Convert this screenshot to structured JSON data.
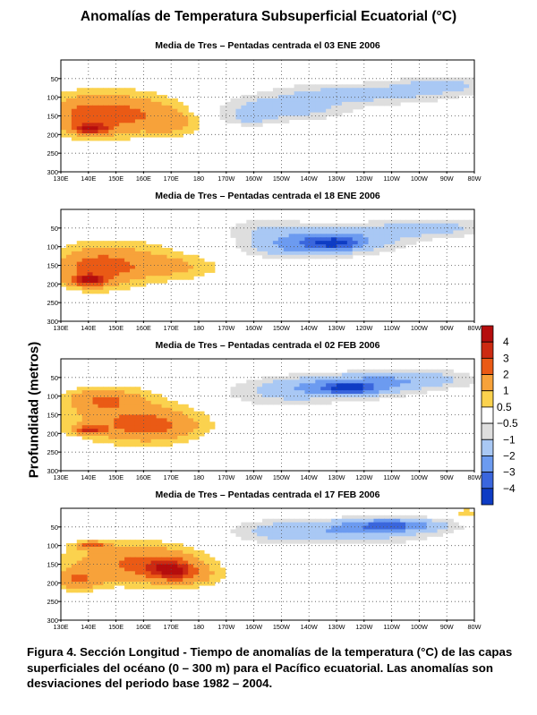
{
  "title": "Anomalías de Temperatura Subsuperficial Ecuatorial (°C)",
  "ylabel": "Profundidad (metros)",
  "caption": "Figura 4.  Sección Longitud  - Tiempo  de anomalías de la temperatura (°C) de las capas superficiales del océano (0 – 300 m) para el Pacífico ecuatorial.  Las anomalías son desviaciones del periodo base 1982 – 2004.",
  "colorbar": {
    "labels": [
      "4",
      "3",
      "2",
      "1",
      "0.5",
      "−0.5",
      "−1",
      "−2",
      "−3",
      "−4"
    ],
    "levels": [
      {
        "lo": 4,
        "hi": null,
        "color": "#b50d0d"
      },
      {
        "lo": 3,
        "hi": 4,
        "color": "#cc2a12"
      },
      {
        "lo": 2,
        "hi": 3,
        "color": "#ea5a15"
      },
      {
        "lo": 1,
        "hi": 2,
        "color": "#f7a23a"
      },
      {
        "lo": 0.5,
        "hi": 1,
        "color": "#fbd24e"
      },
      {
        "lo": -0.5,
        "hi": 0.5,
        "color": "#ffffff"
      },
      {
        "lo": -1,
        "hi": -0.5,
        "color": "#dedede"
      },
      {
        "lo": -2,
        "hi": -1,
        "color": "#a9c8f4"
      },
      {
        "lo": -3,
        "hi": -2,
        "color": "#6c9bf0"
      },
      {
        "lo": -4,
        "hi": -3,
        "color": "#3a66dd"
      },
      {
        "lo": null,
        "hi": -4,
        "color": "#0e3cc4"
      }
    ]
  },
  "chart_data": [
    {
      "type": "heatmap",
      "title": "Media de Tres – Pentadas  centrada el 03 ENE 2006",
      "xlabel": "",
      "ylabel": "Profundidad (metros)",
      "x_ticks": [
        "130E",
        "140E",
        "150E",
        "160E",
        "170E",
        "180",
        "170W",
        "160W",
        "150W",
        "140W",
        "130W",
        "120W",
        "110W",
        "100W",
        "90W",
        "80W"
      ],
      "x_lon": [
        130,
        140,
        150,
        160,
        170,
        180,
        190,
        200,
        210,
        220,
        230,
        240,
        250,
        260,
        270,
        280
      ],
      "y_ticks": [
        50,
        100,
        150,
        200,
        250,
        300
      ],
      "ylim": [
        300,
        0
      ],
      "grid": true,
      "features": [
        {
          "lon": 141,
          "depth": 185,
          "rx": 6,
          "ry": 12,
          "amp": 3.2
        },
        {
          "lon": 140,
          "depth": 150,
          "rx": 15,
          "ry": 50,
          "amp": 1.7
        },
        {
          "lon": 151,
          "depth": 140,
          "rx": 22,
          "ry": 62,
          "amp": 1.1
        },
        {
          "lon": 163,
          "depth": 150,
          "rx": 16,
          "ry": 40,
          "amp": 0.8
        },
        {
          "lon": 170,
          "depth": 175,
          "rx": 9,
          "ry": 30,
          "amp": 0.7
        },
        {
          "lon": 210,
          "depth": 130,
          "rx": 22,
          "ry": 30,
          "amp": -1.6
        },
        {
          "lon": 240,
          "depth": 90,
          "rx": 32,
          "ry": 28,
          "amp": -1.4
        },
        {
          "lon": 268,
          "depth": 65,
          "rx": 14,
          "ry": 22,
          "amp": -1.3
        },
        {
          "lon": 198,
          "depth": 160,
          "rx": 10,
          "ry": 18,
          "amp": -0.8
        }
      ]
    },
    {
      "type": "heatmap",
      "title": "Media de Tres – Pentadas  centrada el 18 ENE 2006",
      "xlabel": "",
      "ylabel": "Profundidad (metros)",
      "x_ticks": [
        "130E",
        "140E",
        "150E",
        "160E",
        "170E",
        "180",
        "170W",
        "160W",
        "150W",
        "140W",
        "130W",
        "120W",
        "110W",
        "100W",
        "90W",
        "80W"
      ],
      "x_lon": [
        130,
        140,
        150,
        160,
        170,
        180,
        190,
        200,
        210,
        220,
        230,
        240,
        250,
        260,
        270,
        280
      ],
      "y_ticks": [
        50,
        100,
        150,
        200,
        250,
        300
      ],
      "ylim": [
        300,
        0
      ],
      "grid": true,
      "features": [
        {
          "lon": 140,
          "depth": 190,
          "rx": 6,
          "ry": 14,
          "amp": 3.2
        },
        {
          "lon": 142,
          "depth": 160,
          "rx": 13,
          "ry": 50,
          "amp": 1.7
        },
        {
          "lon": 152,
          "depth": 140,
          "rx": 22,
          "ry": 60,
          "amp": 1.1
        },
        {
          "lon": 170,
          "depth": 155,
          "rx": 18,
          "ry": 30,
          "amp": 0.9
        },
        {
          "lon": 228,
          "depth": 85,
          "rx": 22,
          "ry": 30,
          "amp": -2.6
        },
        {
          "lon": 230,
          "depth": 90,
          "rx": 8,
          "ry": 15,
          "amp": -1.9
        },
        {
          "lon": 215,
          "depth": 105,
          "rx": 18,
          "ry": 28,
          "amp": -1.2
        },
        {
          "lon": 262,
          "depth": 50,
          "rx": 22,
          "ry": 25,
          "amp": -1.5
        },
        {
          "lon": 205,
          "depth": 50,
          "rx": 16,
          "ry": 30,
          "amp": -0.9
        }
      ]
    },
    {
      "type": "heatmap",
      "title": "Media de Tres – Pentadas  centrada el 02 FEB 2006",
      "xlabel": "",
      "ylabel": "Profundidad (metros)",
      "x_ticks": [
        "130E",
        "140E",
        "150E",
        "160E",
        "170E",
        "180",
        "170W",
        "160W",
        "150W",
        "140W",
        "130W",
        "120W",
        "110W",
        "100W",
        "90W",
        "80W"
      ],
      "x_lon": [
        130,
        140,
        150,
        160,
        170,
        180,
        190,
        200,
        210,
        220,
        230,
        240,
        250,
        260,
        270,
        280
      ],
      "y_ticks": [
        50,
        100,
        150,
        200,
        250,
        300
      ],
      "ylim": [
        300,
        0
      ],
      "grid": true,
      "features": [
        {
          "lon": 140,
          "depth": 190,
          "rx": 5,
          "ry": 10,
          "amp": 3.0
        },
        {
          "lon": 162,
          "depth": 180,
          "rx": 18,
          "ry": 40,
          "amp": 1.9
        },
        {
          "lon": 145,
          "depth": 110,
          "rx": 12,
          "ry": 28,
          "amp": 1.6
        },
        {
          "lon": 152,
          "depth": 150,
          "rx": 25,
          "ry": 70,
          "amp": 1.0
        },
        {
          "lon": 233,
          "depth": 75,
          "rx": 20,
          "ry": 28,
          "amp": -2.6
        },
        {
          "lon": 235,
          "depth": 80,
          "rx": 8,
          "ry": 14,
          "amp": -2.2
        },
        {
          "lon": 258,
          "depth": 55,
          "rx": 22,
          "ry": 25,
          "amp": -1.6
        },
        {
          "lon": 208,
          "depth": 90,
          "rx": 20,
          "ry": 40,
          "amp": -1.0
        }
      ]
    },
    {
      "type": "heatmap",
      "title": "Media de Tres – Pentadas  centrada el 17 FEB 2006",
      "xlabel": "",
      "ylabel": "Profundidad (metros)",
      "x_ticks": [
        "130E",
        "140E",
        "150E",
        "160E",
        "170E",
        "180",
        "170W",
        "160W",
        "150W",
        "140W",
        "130W",
        "120W",
        "110W",
        "100W",
        "90W",
        "80W"
      ],
      "x_lon": [
        130,
        140,
        150,
        160,
        170,
        180,
        190,
        200,
        210,
        220,
        230,
        240,
        250,
        260,
        270,
        280
      ],
      "y_ticks": [
        50,
        100,
        150,
        200,
        250,
        300
      ],
      "ylim": [
        300,
        0
      ],
      "grid": true,
      "features": [
        {
          "lon": 170,
          "depth": 165,
          "rx": 7,
          "ry": 22,
          "amp": 3.0
        },
        {
          "lon": 166,
          "depth": 155,
          "rx": 18,
          "ry": 45,
          "amp": 1.8
        },
        {
          "lon": 150,
          "depth": 140,
          "rx": 22,
          "ry": 60,
          "amp": 1.1
        },
        {
          "lon": 141,
          "depth": 100,
          "rx": 5,
          "ry": 10,
          "amp": 2.2
        },
        {
          "lon": 136,
          "depth": 190,
          "rx": 8,
          "ry": 28,
          "amp": 1.8
        },
        {
          "lon": 178,
          "depth": 185,
          "rx": 10,
          "ry": 25,
          "amp": 0.8
        },
        {
          "lon": 250,
          "depth": 45,
          "rx": 18,
          "ry": 18,
          "amp": -2.8
        },
        {
          "lon": 235,
          "depth": 65,
          "rx": 28,
          "ry": 30,
          "amp": -1.5
        },
        {
          "lon": 210,
          "depth": 60,
          "rx": 18,
          "ry": 30,
          "amp": -1.0
        },
        {
          "lon": 277,
          "depth": 10,
          "rx": 4,
          "ry": 8,
          "amp": 0.9
        }
      ]
    }
  ]
}
